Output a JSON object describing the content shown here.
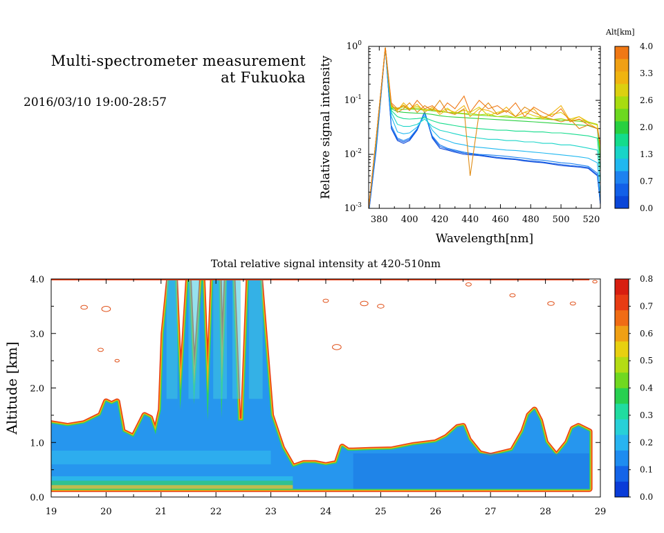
{
  "header": {
    "title_line1": "Multi-spectrometer measurement",
    "title_line2": "at Fukuoka",
    "date_range": "2016/03/10 19:00-28:57"
  },
  "chart_data": [
    {
      "type": "line",
      "title": "",
      "xlabel": "Wavelength[nm]",
      "ylabel": "Relative signal intensity",
      "xlim": [
        373,
        526
      ],
      "ylim": [
        0.001,
        1
      ],
      "yscale": "log",
      "x_ticks": [
        380,
        400,
        420,
        440,
        460,
        480,
        500,
        520
      ],
      "y_ticks": [
        {
          "value": 0.001,
          "base": "10",
          "exp": "-3"
        },
        {
          "value": 0.01,
          "base": "10",
          "exp": "-2"
        },
        {
          "value": 0.1,
          "base": "10",
          "exp": "-1"
        },
        {
          "value": 1,
          "base": "10",
          "exp": "0"
        }
      ],
      "x": [
        373,
        378,
        384,
        388,
        392,
        396,
        400,
        405,
        410,
        415,
        420,
        425,
        430,
        436,
        440,
        446,
        452,
        458,
        464,
        470,
        476,
        482,
        488,
        494,
        500,
        506,
        512,
        518,
        524,
        526
      ],
      "series": [
        {
          "alt": 0.3,
          "color": "#0a46d8",
          "values": [
            0.0008,
            0.012,
            0.95,
            0.03,
            0.018,
            0.016,
            0.018,
            0.028,
            0.06,
            0.02,
            0.013,
            0.012,
            0.011,
            0.01,
            0.0098,
            0.0095,
            0.009,
            0.0085,
            0.0082,
            0.008,
            0.0075,
            0.0072,
            0.007,
            0.0066,
            0.0062,
            0.006,
            0.0058,
            0.0055,
            0.004,
            0.0012
          ]
        },
        {
          "alt": 0.5,
          "color": "#1260e8",
          "values": [
            0.0008,
            0.013,
            0.95,
            0.031,
            0.019,
            0.017,
            0.019,
            0.029,
            0.062,
            0.021,
            0.014,
            0.0125,
            0.0115,
            0.0105,
            0.0102,
            0.0098,
            0.0093,
            0.0088,
            0.0085,
            0.0082,
            0.0078,
            0.0075,
            0.0072,
            0.0068,
            0.0065,
            0.0062,
            0.006,
            0.0057,
            0.0042,
            0.0012
          ]
        },
        {
          "alt": 0.7,
          "color": "#1e82f0",
          "values": [
            0.0009,
            0.014,
            0.95,
            0.034,
            0.02,
            0.018,
            0.02,
            0.03,
            0.058,
            0.022,
            0.015,
            0.013,
            0.012,
            0.011,
            0.0105,
            0.01,
            0.0098,
            0.0095,
            0.0092,
            0.0088,
            0.0085,
            0.008,
            0.0078,
            0.0074,
            0.007,
            0.0068,
            0.0064,
            0.006,
            0.0045,
            0.0013
          ]
        },
        {
          "alt": 1.0,
          "color": "#20b8f0",
          "values": [
            0.001,
            0.016,
            0.95,
            0.05,
            0.026,
            0.024,
            0.025,
            0.032,
            0.052,
            0.028,
            0.02,
            0.018,
            0.016,
            0.015,
            0.014,
            0.0135,
            0.013,
            0.0125,
            0.012,
            0.0118,
            0.0114,
            0.011,
            0.0106,
            0.0102,
            0.0098,
            0.0094,
            0.009,
            0.0085,
            0.007,
            0.0018
          ]
        },
        {
          "alt": 1.3,
          "color": "#18d4c8",
          "values": [
            0.001,
            0.018,
            0.95,
            0.06,
            0.036,
            0.033,
            0.033,
            0.036,
            0.045,
            0.033,
            0.028,
            0.026,
            0.024,
            0.022,
            0.021,
            0.02,
            0.019,
            0.019,
            0.018,
            0.018,
            0.017,
            0.017,
            0.016,
            0.016,
            0.015,
            0.015,
            0.014,
            0.013,
            0.012,
            0.003
          ]
        },
        {
          "alt": 1.6,
          "color": "#14dc8c",
          "values": [
            0.001,
            0.02,
            0.95,
            0.065,
            0.05,
            0.046,
            0.045,
            0.046,
            0.048,
            0.042,
            0.038,
            0.036,
            0.034,
            0.032,
            0.031,
            0.03,
            0.029,
            0.028,
            0.028,
            0.027,
            0.027,
            0.026,
            0.026,
            0.025,
            0.025,
            0.024,
            0.023,
            0.022,
            0.02,
            0.005
          ]
        },
        {
          "alt": 2.0,
          "color": "#28d040",
          "values": [
            0.001,
            0.02,
            0.95,
            0.07,
            0.062,
            0.06,
            0.059,
            0.058,
            0.057,
            0.055,
            0.052,
            0.05,
            0.049,
            0.048,
            0.047,
            0.046,
            0.045,
            0.044,
            0.043,
            0.042,
            0.041,
            0.04,
            0.039,
            0.038,
            0.037,
            0.036,
            0.035,
            0.034,
            0.03,
            0.008
          ]
        },
        {
          "alt": 2.3,
          "color": "#6cd820",
          "values": [
            0.001,
            0.02,
            0.95,
            0.072,
            0.07,
            0.068,
            0.069,
            0.068,
            0.066,
            0.064,
            0.062,
            0.06,
            0.058,
            0.056,
            0.054,
            0.053,
            0.052,
            0.05,
            0.049,
            0.048,
            0.047,
            0.046,
            0.045,
            0.044,
            0.043,
            0.042,
            0.041,
            0.039,
            0.035,
            0.01
          ]
        },
        {
          "alt": 2.6,
          "color": "#a8dc10",
          "values": [
            0.001,
            0.02,
            0.95,
            0.075,
            0.072,
            0.075,
            0.07,
            0.072,
            0.068,
            0.067,
            0.064,
            0.06,
            0.06,
            0.057,
            0.058,
            0.054,
            0.056,
            0.05,
            0.052,
            0.048,
            0.05,
            0.046,
            0.048,
            0.044,
            0.046,
            0.042,
            0.044,
            0.04,
            0.036,
            0.012
          ]
        },
        {
          "alt": 3.0,
          "color": "#dcd010",
          "values": [
            0.001,
            0.02,
            0.95,
            0.078,
            0.068,
            0.082,
            0.07,
            0.078,
            0.065,
            0.07,
            0.06,
            0.072,
            0.056,
            0.066,
            0.06,
            0.075,
            0.052,
            0.06,
            0.065,
            0.05,
            0.06,
            0.052,
            0.048,
            0.055,
            0.06,
            0.045,
            0.05,
            0.04,
            0.035,
            0.014
          ]
        },
        {
          "alt": 3.3,
          "color": "#f0b410",
          "values": [
            0.001,
            0.02,
            0.95,
            0.08,
            0.065,
            0.09,
            0.07,
            0.085,
            0.06,
            0.075,
            0.055,
            0.068,
            0.06,
            0.08,
            0.05,
            0.07,
            0.065,
            0.055,
            0.075,
            0.05,
            0.06,
            0.07,
            0.045,
            0.058,
            0.08,
            0.042,
            0.05,
            0.038,
            0.03,
            0.015
          ]
        },
        {
          "alt": 3.6,
          "color": "#e08c14",
          "values": [
            0.001,
            0.02,
            0.95,
            0.085,
            0.06,
            0.07,
            0.09,
            0.06,
            0.08,
            0.065,
            0.1,
            0.06,
            0.055,
            0.07,
            0.004,
            0.06,
            0.09,
            0.055,
            0.065,
            0.05,
            0.075,
            0.06,
            0.05,
            0.045,
            0.04,
            0.045,
            0.03,
            0.035,
            0.03,
            0.015
          ]
        },
        {
          "alt": 4.0,
          "color": "#f07814",
          "values": [
            0.001,
            0.02,
            0.95,
            0.09,
            0.07,
            0.08,
            0.065,
            0.1,
            0.07,
            0.08,
            0.06,
            0.09,
            0.07,
            0.12,
            0.06,
            0.1,
            0.07,
            0.08,
            0.06,
            0.09,
            0.05,
            0.075,
            0.06,
            0.05,
            0.07,
            0.04,
            0.045,
            0.035,
            0.03,
            0.015
          ]
        }
      ],
      "colorbar": {
        "label": "Alt[km]",
        "min": 0.0,
        "max": 4.0,
        "tick_labels": [
          "0.0",
          "0.7",
          "1.3",
          "2.0",
          "2.6",
          "3.3",
          "4.0"
        ],
        "colors": [
          "#0a46d8",
          "#1260e8",
          "#1e82f0",
          "#20b8f0",
          "#18d4c8",
          "#14dc8c",
          "#28d040",
          "#6cd820",
          "#a8dc10",
          "#dcd010",
          "#f0b410",
          "#f0a014",
          "#f07814"
        ]
      }
    },
    {
      "type": "heatmap",
      "title": "Total relative signal intensity at 420-510nm",
      "xlabel": "",
      "ylabel": "Altitude [km]",
      "xlim": [
        19,
        29
      ],
      "ylim": [
        0,
        4
      ],
      "x_ticks": [
        "19",
        "20",
        "21",
        "22",
        "23",
        "24",
        "25",
        "26",
        "27",
        "28",
        "29"
      ],
      "y_ticks": [
        "0.0",
        "1.0",
        "2.0",
        "3.0",
        "4.0"
      ],
      "data_xlim": [
        19,
        28.8
      ],
      "data_ylim": [
        0.15,
        4.0
      ],
      "boundary_time": [
        19.0,
        19.3,
        19.6,
        19.9,
        20.0,
        20.1,
        20.2,
        20.3,
        20.5,
        20.7,
        20.8,
        20.9,
        21.0,
        21.05,
        21.15,
        21.25,
        21.35,
        21.5,
        21.6,
        21.75,
        21.85,
        21.95,
        22.05,
        22.1,
        22.2,
        22.3,
        22.4,
        22.5,
        22.6,
        22.7,
        22.8,
        23.0,
        23.2,
        23.4,
        23.6,
        23.8,
        24.0,
        24.2,
        24.3,
        24.4,
        24.5,
        24.8,
        25.2,
        25.6,
        26.0,
        26.2,
        26.4,
        26.5,
        26.6,
        26.8,
        27.0,
        27.2,
        27.4,
        27.6,
        27.7,
        27.8,
        27.9,
        28.0,
        28.2,
        28.4,
        28.5,
        28.6,
        28.8
      ],
      "boundary_alt": [
        1.35,
        1.3,
        1.35,
        1.5,
        1.75,
        1.7,
        1.75,
        1.2,
        1.1,
        1.5,
        1.45,
        1.15,
        1.6,
        3.0,
        4.0,
        4.0,
        1.6,
        4.0,
        1.7,
        4.0,
        1.4,
        4.0,
        4.0,
        1.45,
        4.0,
        4.0,
        1.4,
        1.4,
        4.0,
        4.0,
        4.0,
        1.5,
        0.9,
        0.55,
        0.62,
        0.62,
        0.58,
        0.62,
        0.92,
        0.85,
        0.85,
        0.86,
        0.87,
        0.95,
        1.0,
        1.1,
        1.28,
        1.3,
        1.05,
        0.8,
        0.75,
        0.8,
        0.85,
        1.2,
        1.5,
        1.6,
        1.4,
        1.0,
        0.75,
        1.0,
        1.25,
        1.3,
        1.2
      ],
      "noise_contours": [
        {
          "t": 19.6,
          "a": 3.48,
          "r": 0.06
        },
        {
          "t": 20.0,
          "a": 3.45,
          "r": 0.08
        },
        {
          "t": 19.9,
          "a": 2.7,
          "r": 0.05
        },
        {
          "t": 20.2,
          "a": 2.5,
          "r": 0.04
        },
        {
          "t": 24.0,
          "a": 3.6,
          "r": 0.05
        },
        {
          "t": 24.7,
          "a": 3.55,
          "r": 0.07
        },
        {
          "t": 25.0,
          "a": 3.5,
          "r": 0.06
        },
        {
          "t": 24.2,
          "a": 2.75,
          "r": 0.08
        },
        {
          "t": 26.6,
          "a": 3.9,
          "r": 0.05
        },
        {
          "t": 27.4,
          "a": 3.7,
          "r": 0.05
        },
        {
          "t": 28.1,
          "a": 3.55,
          "r": 0.06
        },
        {
          "t": 28.5,
          "a": 3.55,
          "r": 0.05
        },
        {
          "t": 28.9,
          "a": 3.95,
          "r": 0.04
        }
      ],
      "colorbar": {
        "min": 0.0,
        "max": 0.8,
        "tick_labels": [
          "0.0",
          "0.1",
          "0.2",
          "0.3",
          "0.4",
          "0.5",
          "0.6",
          "0.7",
          "0.8"
        ],
        "colors": [
          "#0a3cd8",
          "#1464e8",
          "#1e8cf0",
          "#28b4f0",
          "#28d0d8",
          "#20dca0",
          "#28d050",
          "#70d820",
          "#b4dc14",
          "#e8d010",
          "#f0a014",
          "#f06c14",
          "#e83c14",
          "#d81e10"
        ]
      }
    }
  ]
}
